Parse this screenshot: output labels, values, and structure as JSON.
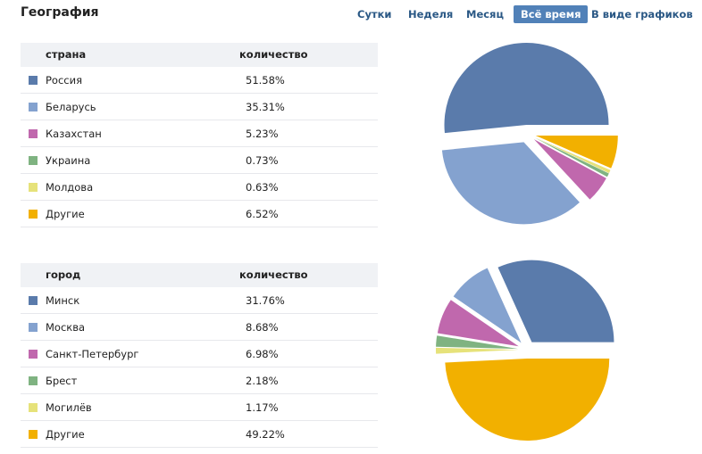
{
  "header": {
    "title": "География"
  },
  "tabs": [
    {
      "label": "Сутки",
      "active": false
    },
    {
      "label": "Неделя",
      "active": false
    },
    {
      "label": "Месяц",
      "active": false
    },
    {
      "label": "Всё время",
      "active": true
    },
    {
      "label": "В виде графиков",
      "active": false
    }
  ],
  "countries": {
    "col_name": "страна",
    "col_value": "количество",
    "rows": [
      {
        "name": "Россия",
        "value": "51.58%",
        "color": "#5a7bab"
      },
      {
        "name": "Беларусь",
        "value": "35.31%",
        "color": "#84a2cf"
      },
      {
        "name": "Казахстан",
        "value": "5.23%",
        "color": "#c068ad"
      },
      {
        "name": "Украина",
        "value": "0.73%",
        "color": "#7fb381"
      },
      {
        "name": "Молдова",
        "value": "0.63%",
        "color": "#e6e27a"
      },
      {
        "name": "Другие",
        "value": "6.52%",
        "color": "#f2b000"
      }
    ]
  },
  "cities": {
    "col_name": "город",
    "col_value": "количество",
    "rows": [
      {
        "name": "Минск",
        "value": "31.76%",
        "color": "#5a7bab"
      },
      {
        "name": "Москва",
        "value": "8.68%",
        "color": "#84a2cf"
      },
      {
        "name": "Санкт-Петербург",
        "value": "6.98%",
        "color": "#c068ad"
      },
      {
        "name": "Брест",
        "value": "2.18%",
        "color": "#7fb381"
      },
      {
        "name": "Могилёв",
        "value": "1.17%",
        "color": "#e6e27a"
      },
      {
        "name": "Другие",
        "value": "49.22%",
        "color": "#f2b000"
      }
    ]
  },
  "chart_data": [
    {
      "type": "pie",
      "categories": [
        "Россия",
        "Беларусь",
        "Казахстан",
        "Украина",
        "Молдова",
        "Другие"
      ],
      "values": [
        51.58,
        35.31,
        5.23,
        0.73,
        0.63,
        6.52
      ],
      "colors": [
        "#5a7bab",
        "#84a2cf",
        "#c068ad",
        "#7fb381",
        "#e6e27a",
        "#f2b000"
      ]
    },
    {
      "type": "pie",
      "categories": [
        "Минск",
        "Москва",
        "Санкт-Петербург",
        "Брест",
        "Могилёв",
        "Другие"
      ],
      "values": [
        31.76,
        8.68,
        6.98,
        2.18,
        1.17,
        49.22
      ],
      "colors": [
        "#5a7bab",
        "#84a2cf",
        "#c068ad",
        "#7fb381",
        "#e6e27a",
        "#f2b000"
      ]
    }
  ]
}
